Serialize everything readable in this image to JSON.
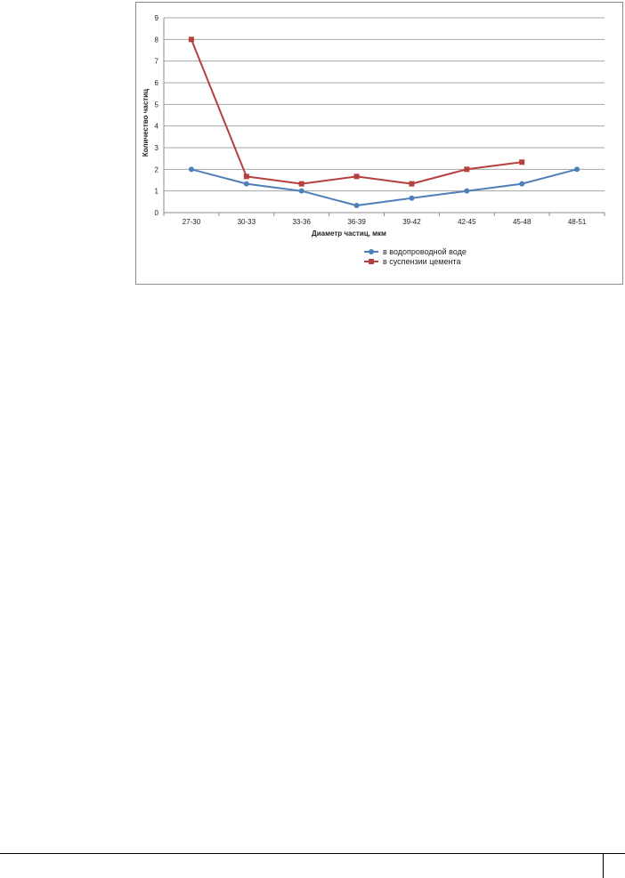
{
  "chart_data": {
    "type": "line",
    "title": "",
    "xlabel": "Диаметр частиц, мкм",
    "ylabel": "Количество частиц",
    "categories": [
      "27-30",
      "30-33",
      "33-36",
      "36-39",
      "39-42",
      "42-45",
      "45-48",
      "48-51"
    ],
    "ylim": [
      0,
      9
    ],
    "yticks": [
      "0",
      "1",
      "2",
      "3",
      "4",
      "5",
      "6",
      "7",
      "8",
      "9"
    ],
    "grid": true,
    "legend_position": "bottom-right",
    "series": [
      {
        "name": "в водопроводной воде",
        "color": "#4f7fb8",
        "marker": "circle",
        "values": [
          2,
          1.33,
          1,
          0.33,
          0.67,
          1,
          1.33,
          2
        ]
      },
      {
        "name": "в суспензии цемента",
        "color": "#b5403d",
        "marker": "square",
        "values": [
          8,
          1.67,
          1.33,
          1.67,
          1.33,
          2,
          2.33,
          null
        ]
      }
    ]
  }
}
